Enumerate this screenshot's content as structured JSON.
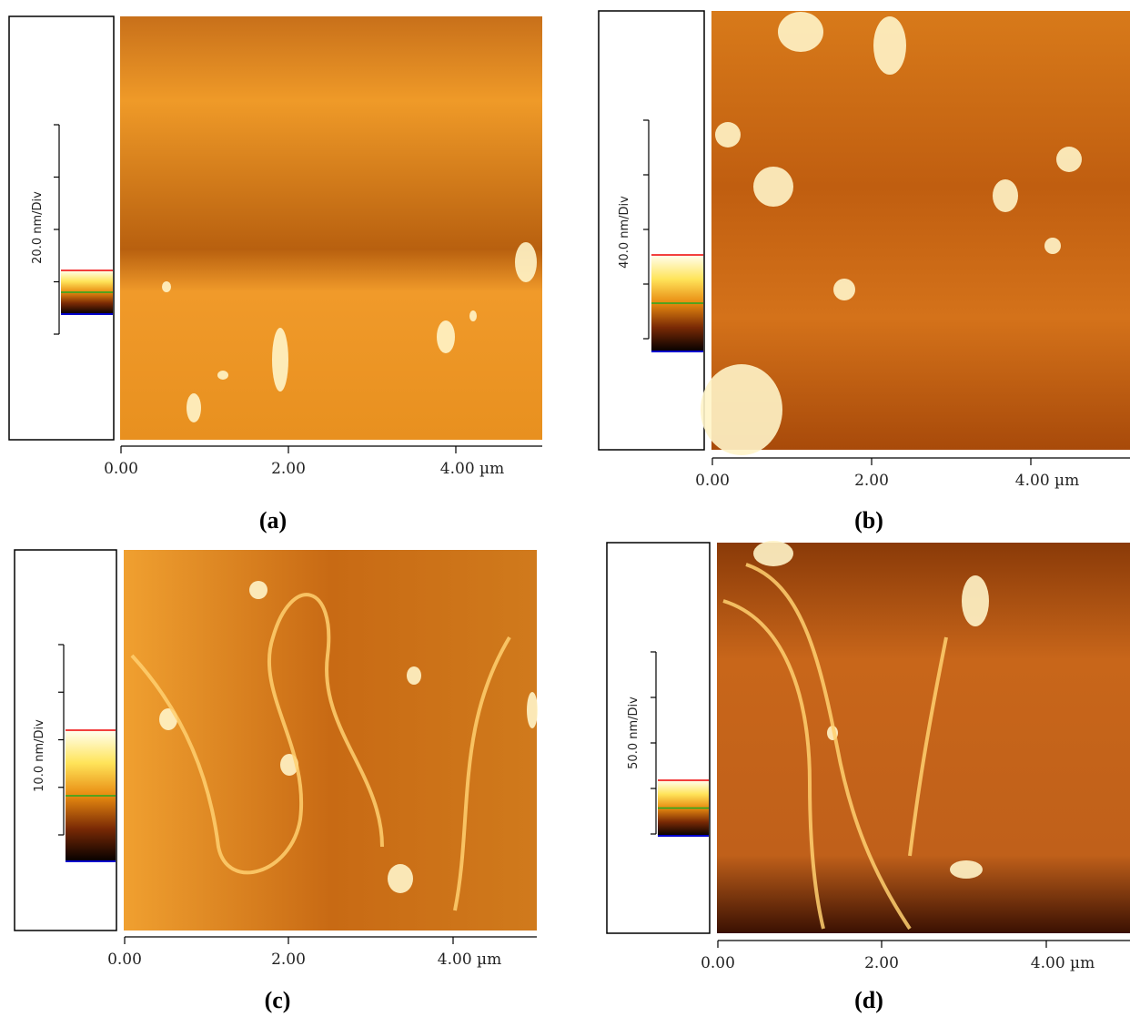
{
  "panels": [
    {
      "label": "(a)",
      "scale_label": "20.0 nm/Div",
      "x_tick_labels": [
        "0.00",
        "2.00",
        "4.00 µm"
      ]
    },
    {
      "label": "(b)",
      "scale_label": "40.0 nm/Div",
      "x_tick_labels": [
        "0.00",
        "2.00",
        "4.00 µm"
      ]
    },
    {
      "label": "(c)",
      "scale_label": "10.0 nm/Div",
      "x_tick_labels": [
        "0.00",
        "2.00",
        "4.00 µm"
      ]
    },
    {
      "label": "(d)",
      "scale_label": "50.0 nm/Div",
      "x_tick_labels": [
        "0.00",
        "2.00",
        "4.00 µm"
      ]
    }
  ]
}
